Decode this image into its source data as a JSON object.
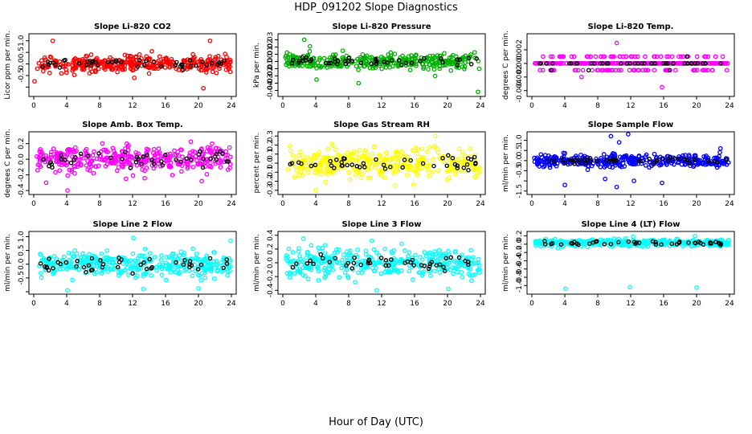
{
  "title": "HDP_091202  Slope Diagnostics",
  "xlabel_global": "Hour of Day (UTC)",
  "chart_data": [
    {
      "type": "scatter",
      "title": "Slope Li-820 CO2",
      "ylabel": "Licor ppm per min.",
      "color": "#ff0000",
      "xlim": [
        0,
        24
      ],
      "ylim": [
        -1.3,
        1.2
      ],
      "xticks": [
        0,
        4,
        8,
        12,
        16,
        20,
        24
      ],
      "yticks": [
        -1,
        -0.5,
        0,
        0.5,
        1
      ],
      "ytick_labels": [
        "",
        "-0.5",
        "0.0",
        "0.5",
        "1.0"
      ],
      "spread": 0.18,
      "seed": 11,
      "outliers": [
        [
          2.3,
          1.0
        ],
        [
          21.4,
          1.0
        ],
        [
          20.6,
          -1.05
        ],
        [
          0.1,
          -0.75
        ],
        [
          12.2,
          -0.6
        ]
      ]
    },
    {
      "type": "scatter",
      "title": "Slope Li-820 Pressure",
      "ylabel": "kPa per min.",
      "color": "#00b000",
      "xlim": [
        0,
        24
      ],
      "ylim": [
        -0.045,
        0.035
      ],
      "xticks": [
        0,
        4,
        8,
        12,
        16,
        20,
        24
      ],
      "yticks": [
        -0.04,
        -0.03,
        -0.02,
        -0.01,
        0,
        0.01,
        0.02,
        0.03
      ],
      "ytick_labels": [
        "-0.04",
        "-0.03",
        "-0.02",
        "-0.01",
        "0.00",
        "0.01",
        "0.02",
        "0.03"
      ],
      "spread": 0.005,
      "seed": 23,
      "outliers": [
        [
          2.6,
          0.03
        ],
        [
          3.3,
          0.021
        ],
        [
          9.2,
          -0.03
        ],
        [
          23.7,
          -0.042
        ],
        [
          4.1,
          -0.025
        ],
        [
          18.5,
          -0.02
        ]
      ]
    },
    {
      "type": "scatter",
      "title": "Slope Li-820 Temp.",
      "ylabel": "degrees C per min.",
      "color": "#ff00ff",
      "xlim": [
        0,
        24
      ],
      "ylim": [
        -0.0045,
        0.004
      ],
      "xticks": [
        0,
        4,
        8,
        12,
        16,
        20,
        24
      ],
      "yticks": [
        -0.004,
        -0.002,
        0,
        0.002
      ],
      "ytick_labels": [
        "-0.004",
        "-0.002",
        "0.000",
        "0.002"
      ],
      "spread": 0.0005,
      "seed": 37,
      "quantized": 0.001,
      "outliers": [
        [
          10.3,
          0.003
        ],
        [
          15.8,
          -0.0035
        ]
      ]
    },
    {
      "type": "scatter",
      "title": "Slope Amb. Box Temp.",
      "ylabel": "degrees C per min.",
      "color": "#ff00ff",
      "xlim": [
        0,
        24
      ],
      "ylim": [
        -0.42,
        0.32
      ],
      "xticks": [
        0,
        4,
        8,
        12,
        16,
        20,
        24
      ],
      "yticks": [
        -0.4,
        -0.2,
        0,
        0.2
      ],
      "ytick_labels": [
        "-0.4",
        "-0.2",
        "0.0",
        "0.2"
      ],
      "spread": 0.08,
      "seed": 41,
      "outliers": [
        [
          4.1,
          -0.4
        ],
        [
          1.5,
          -0.3
        ],
        [
          20.4,
          -0.28
        ],
        [
          11.2,
          -0.25
        ]
      ]
    },
    {
      "type": "scatter",
      "title": "Slope Gas Stream RH",
      "ylabel": "percent per min.",
      "color": "#ffff00",
      "xlim": [
        0,
        24
      ],
      "ylim": [
        -0.32,
        0.32
      ],
      "xticks": [
        0,
        4,
        8,
        12,
        16,
        20,
        24
      ],
      "yticks": [
        -0.3,
        -0.2,
        -0.1,
        0,
        0.1,
        0.2,
        0.3
      ],
      "ytick_labels": [
        "-0.3",
        "-0.2",
        "-0.1",
        "0.0",
        "0.1",
        "0.2",
        "0.3"
      ],
      "spread": 0.08,
      "seed": 53,
      "outliers": [
        [
          4.0,
          -0.3
        ],
        [
          18.5,
          0.3
        ],
        [
          13.6,
          -0.25
        ]
      ]
    },
    {
      "type": "scatter",
      "title": "Slope Sample Flow",
      "ylabel": "ml/min per min.",
      "color": "#0000ff",
      "xlim": [
        0,
        24
      ],
      "ylim": [
        -1.55,
        1.3
      ],
      "xticks": [
        0,
        4,
        8,
        12,
        16,
        20,
        24
      ],
      "yticks": [
        -1.5,
        -1,
        -0.5,
        0,
        0.5,
        1
      ],
      "ytick_labels": [
        "-1.5",
        "",
        "-0.5",
        "0.0",
        "0.5",
        "1.0"
      ],
      "spread": 0.15,
      "seed": 67,
      "outliers": [
        [
          9.6,
          1.2
        ],
        [
          10.6,
          0.9
        ],
        [
          11.7,
          1.3
        ],
        [
          4.0,
          -1.2
        ],
        [
          10.3,
          -1.3
        ],
        [
          8.9,
          -0.9
        ],
        [
          12.4,
          -1.0
        ],
        [
          15.8,
          -1.1
        ],
        [
          22.9,
          0.6
        ]
      ]
    },
    {
      "type": "scatter",
      "title": "Slope Line 2 Flow",
      "ylabel": "ml/min per min.",
      "color": "#00ffff",
      "xlim": [
        0,
        24
      ],
      "ylim": [
        -1.0,
        1.1
      ],
      "xticks": [
        0,
        4,
        8,
        12,
        16,
        20,
        24
      ],
      "yticks": [
        -1,
        -0.5,
        0,
        0.5,
        1
      ],
      "ytick_labels": [
        "",
        "-0.5",
        "0.0",
        "0.5",
        "1.0"
      ],
      "spread": 0.22,
      "seed": 79,
      "outliers": [
        [
          4.1,
          -0.95
        ],
        [
          12.1,
          0.95
        ],
        [
          13.3,
          -0.9
        ],
        [
          20.0,
          -0.88
        ],
        [
          23.9,
          0.85
        ]
      ]
    },
    {
      "type": "scatter",
      "title": "Slope Line 3 Flow",
      "ylabel": "ml/min per min.",
      "color": "#00ffff",
      "xlim": [
        0,
        24
      ],
      "ylim": [
        -0.42,
        0.42
      ],
      "xticks": [
        0,
        4,
        8,
        12,
        16,
        20,
        24
      ],
      "yticks": [
        -0.4,
        -0.2,
        0,
        0.2,
        0.4
      ],
      "ytick_labels": [
        "-0.4",
        "-0.2",
        "0.0",
        "0.2",
        "0.4"
      ],
      "spread": 0.1,
      "seed": 83,
      "outliers": [
        [
          11.4,
          -0.4
        ],
        [
          20.1,
          -0.38
        ],
        [
          2.5,
          0.35
        ],
        [
          10.8,
          0.32
        ]
      ]
    },
    {
      "type": "scatter",
      "title": "Slope Line 4 (LT) Flow",
      "ylabel": "ml/min per min.",
      "color": "#00ffff",
      "xlim": [
        0,
        24
      ],
      "ylim": [
        -1.15,
        0.25
      ],
      "xticks": [
        0,
        4,
        8,
        12,
        16,
        20,
        24
      ],
      "yticks": [
        -1,
        -0.8,
        -0.6,
        -0.4,
        -0.2,
        0,
        0.2
      ],
      "ytick_labels": [
        "-1.0",
        "-0.8",
        "-0.6",
        "-0.4",
        "-0.2",
        "0.0",
        "0.2"
      ],
      "spread": 0.04,
      "seed": 97,
      "offset": 0.03,
      "outliers": [
        [
          4.1,
          -1.08
        ],
        [
          11.9,
          -1.04
        ],
        [
          20.0,
          -1.05
        ],
        [
          12.3,
          0.18
        ],
        [
          19.8,
          0.2
        ]
      ]
    }
  ]
}
